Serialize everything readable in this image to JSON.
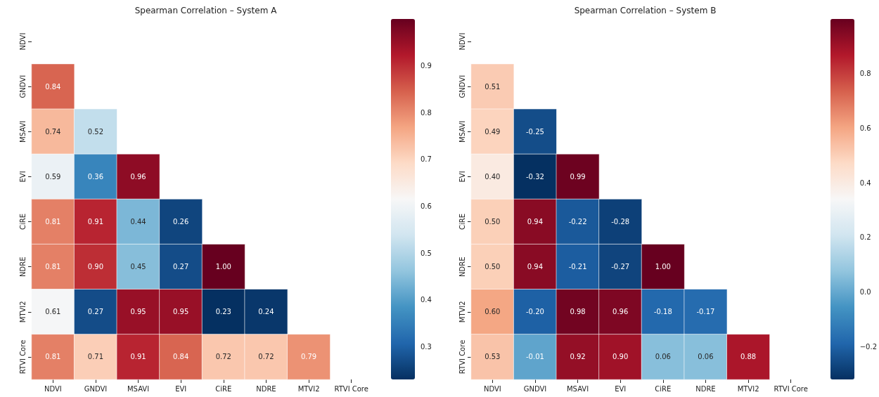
{
  "chart_data": [
    {
      "type": "heatmap",
      "title": "Spearman Correlation – System A",
      "categories": [
        "NDVI",
        "GNDVI",
        "MSAVI",
        "EVI",
        "CiRE",
        "NDRE",
        "MTVI2",
        "RTVI Core"
      ],
      "y_categories": [
        "NDVI",
        "GNDVI",
        "MSAVI",
        "EVI",
        "CiRE",
        "NDRE",
        "MTVI2",
        "RTVI Core"
      ],
      "cells": [
        [
          null,
          null,
          null,
          null,
          null,
          null,
          null,
          null
        ],
        [
          0.84,
          null,
          null,
          null,
          null,
          null,
          null,
          null
        ],
        [
          0.74,
          0.52,
          null,
          null,
          null,
          null,
          null,
          null
        ],
        [
          0.59,
          0.36,
          0.96,
          null,
          null,
          null,
          null,
          null
        ],
        [
          0.81,
          0.91,
          0.44,
          0.26,
          null,
          null,
          null,
          null
        ],
        [
          0.81,
          0.9,
          0.45,
          0.27,
          1.0,
          null,
          null,
          null
        ],
        [
          0.61,
          0.27,
          0.95,
          0.95,
          0.23,
          0.24,
          null,
          null
        ],
        [
          0.81,
          0.71,
          0.91,
          0.84,
          0.72,
          0.72,
          0.79,
          null
        ]
      ],
      "cell_labels": [
        [
          null,
          null,
          null,
          null,
          null,
          null,
          null,
          null
        ],
        [
          "0.84",
          null,
          null,
          null,
          null,
          null,
          null,
          null
        ],
        [
          "0.74",
          "0.52",
          null,
          null,
          null,
          null,
          null,
          null
        ],
        [
          "0.59",
          "0.36",
          "0.96",
          null,
          null,
          null,
          null,
          null
        ],
        [
          "0.81",
          "0.91",
          "0.44",
          "0.26",
          null,
          null,
          null,
          null
        ],
        [
          "0.81",
          "0.90",
          "0.45",
          "0.27",
          "1.00",
          null,
          null,
          null
        ],
        [
          "0.61",
          "0.27",
          "0.95",
          "0.95",
          "0.23",
          "0.24",
          null,
          null
        ],
        [
          "0.81",
          "0.71",
          "0.91",
          "0.84",
          "0.72",
          "0.72",
          "0.79",
          null
        ]
      ],
      "clim": [
        0.23,
        1.0
      ],
      "cticks": [
        0.3,
        0.4,
        0.5,
        0.6,
        0.7,
        0.8,
        0.9
      ]
    },
    {
      "type": "heatmap",
      "title": "Spearman Correlation – System B",
      "categories": [
        "NDVI",
        "GNDVI",
        "MSAVI",
        "EVI",
        "CiRE",
        "NDRE",
        "MTVI2",
        "RTVI Core"
      ],
      "y_categories": [
        "NDVI",
        "GNDVI",
        "MSAVI",
        "EVI",
        "CiRE",
        "NDRE",
        "MTVI2",
        "RTVI Core"
      ],
      "cells": [
        [
          null,
          null,
          null,
          null,
          null,
          null,
          null,
          null
        ],
        [
          0.51,
          null,
          null,
          null,
          null,
          null,
          null,
          null
        ],
        [
          0.49,
          -0.25,
          null,
          null,
          null,
          null,
          null,
          null
        ],
        [
          0.4,
          -0.32,
          0.99,
          null,
          null,
          null,
          null,
          null
        ],
        [
          0.5,
          0.94,
          -0.22,
          -0.28,
          null,
          null,
          null,
          null
        ],
        [
          0.5,
          0.94,
          -0.21,
          -0.27,
          1.0,
          null,
          null,
          null
        ],
        [
          0.6,
          -0.2,
          0.98,
          0.96,
          -0.18,
          -0.17,
          null,
          null
        ],
        [
          0.53,
          -0.01,
          0.92,
          0.9,
          0.06,
          0.06,
          0.88,
          null
        ]
      ],
      "cell_labels": [
        [
          null,
          null,
          null,
          null,
          null,
          null,
          null,
          null
        ],
        [
          "0.51",
          null,
          null,
          null,
          null,
          null,
          null,
          null
        ],
        [
          "0.49",
          "-0.25",
          null,
          null,
          null,
          null,
          null,
          null
        ],
        [
          "0.40",
          "-0.32",
          "0.99",
          null,
          null,
          null,
          null,
          null
        ],
        [
          "0.50",
          "0.94",
          "-0.22",
          "-0.28",
          null,
          null,
          null,
          null
        ],
        [
          "0.50",
          "0.94",
          "-0.21",
          "-0.27",
          "1.00",
          null,
          null,
          null
        ],
        [
          "0.60",
          "-0.20",
          "0.98",
          "0.96",
          "-0.18",
          "-0.17",
          null,
          null
        ],
        [
          "0.53",
          "-0.01",
          "0.92",
          "0.90",
          "0.06",
          "0.06",
          "0.88",
          null
        ]
      ],
      "clim": [
        -0.32,
        1.0
      ],
      "cticks": [
        {
          "value": -0.2,
          "label": "−0.2"
        },
        {
          "value": 0,
          "label": "0.0"
        },
        0.2,
        0.4,
        0.6,
        0.8
      ]
    }
  ]
}
